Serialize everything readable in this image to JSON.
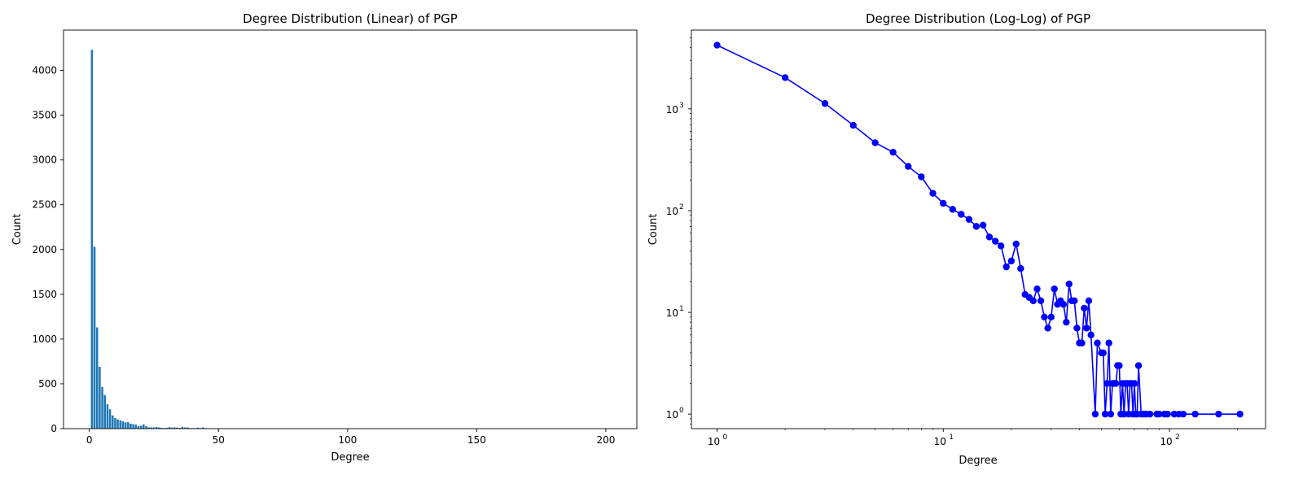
{
  "chart_data": [
    {
      "type": "bar",
      "title": "Degree Distribution (Linear) of PGP",
      "xlabel": "Degree",
      "ylabel": "Count",
      "xlim": [
        -10,
        212
      ],
      "ylim": [
        0,
        4450
      ],
      "xticks": [
        0,
        50,
        100,
        150,
        200
      ],
      "yticks": [
        0,
        500,
        1000,
        1500,
        2000,
        2500,
        3000,
        3500,
        4000
      ],
      "grid": false,
      "color": "#1f77b4",
      "x": [
        1,
        2,
        3,
        4,
        5,
        6,
        7,
        8,
        9,
        10,
        11,
        12,
        13,
        14,
        15,
        16,
        17,
        18,
        19,
        20,
        21,
        22,
        23,
        24,
        25,
        26,
        27,
        28,
        29,
        30,
        31,
        32,
        33,
        34,
        35,
        36,
        37,
        38,
        39,
        40,
        41,
        42,
        43,
        44,
        45,
        47,
        48,
        50,
        51,
        52,
        53,
        54,
        55,
        56,
        57,
        58,
        59,
        60,
        61,
        62,
        63,
        64,
        65,
        66,
        67,
        68,
        69,
        70,
        71,
        72,
        73,
        75,
        77,
        79,
        82,
        88,
        90,
        95,
        98,
        105,
        110,
        115,
        130,
        165,
        205
      ],
      "values": [
        4230,
        2030,
        1130,
        690,
        465,
        375,
        272,
        215,
        148,
        118,
        103,
        92,
        82,
        70,
        72,
        55,
        50,
        45,
        28,
        32,
        47,
        27,
        15,
        14,
        13,
        17,
        13,
        9,
        7,
        9,
        17,
        12,
        13,
        12,
        8,
        19,
        13,
        13,
        7,
        5,
        5,
        11,
        7,
        13,
        6,
        1,
        5,
        4,
        4,
        1,
        2,
        5,
        1,
        2,
        2,
        2,
        3,
        3,
        1,
        2,
        1,
        2,
        2,
        1,
        2,
        2,
        1,
        2,
        1,
        1,
        3,
        1,
        1,
        1,
        1,
        1,
        1,
        1,
        1,
        1,
        1,
        1,
        1,
        1,
        1
      ]
    },
    {
      "type": "line",
      "title": "Degree Distribution (Log-Log) of PGP",
      "xlabel": "Degree",
      "ylabel": "Count",
      "xscale": "log",
      "yscale": "log",
      "xlim": [
        0.77,
        266
      ],
      "ylim": [
        0.72,
        5950
      ],
      "xticks": [
        1,
        10,
        100
      ],
      "xtick_labels": [
        "10",
        "10",
        "10"
      ],
      "xtick_exponents": [
        "0",
        "1",
        "2"
      ],
      "yticks": [
        1,
        10,
        100,
        1000
      ],
      "ytick_labels": [
        "10",
        "10",
        "10",
        "10"
      ],
      "ytick_exponents": [
        "0",
        "1",
        "2",
        "3"
      ],
      "grid": false,
      "marker": "circle",
      "color": "#0000ff",
      "x": [
        1,
        2,
        3,
        4,
        5,
        6,
        7,
        8,
        9,
        10,
        11,
        12,
        13,
        14,
        15,
        16,
        17,
        18,
        19,
        20,
        21,
        22,
        23,
        24,
        25,
        26,
        27,
        28,
        29,
        30,
        31,
        32,
        33,
        34,
        35,
        36,
        37,
        38,
        39,
        40,
        41,
        42,
        43,
        44,
        45,
        47,
        48,
        50,
        51,
        52,
        53,
        54,
        55,
        56,
        57,
        58,
        59,
        60,
        61,
        62,
        63,
        64,
        65,
        66,
        67,
        68,
        69,
        70,
        71,
        72,
        73,
        75,
        77,
        79,
        82,
        88,
        90,
        95,
        98,
        105,
        110,
        115,
        130,
        165,
        205
      ],
      "y": [
        4230,
        2030,
        1130,
        690,
        465,
        375,
        272,
        215,
        148,
        118,
        103,
        92,
        82,
        70,
        72,
        55,
        50,
        45,
        28,
        32,
        47,
        27,
        15,
        14,
        13,
        17,
        13,
        9,
        7,
        9,
        17,
        12,
        13,
        12,
        8,
        19,
        13,
        13,
        7,
        5,
        5,
        11,
        7,
        13,
        6,
        1,
        5,
        4,
        4,
        1,
        2,
        5,
        1,
        2,
        2,
        2,
        3,
        3,
        1,
        2,
        1,
        2,
        2,
        1,
        2,
        2,
        1,
        2,
        1,
        1,
        3,
        1,
        1,
        1,
        1,
        1,
        1,
        1,
        1,
        1,
        1,
        1,
        1,
        1,
        1
      ]
    }
  ]
}
